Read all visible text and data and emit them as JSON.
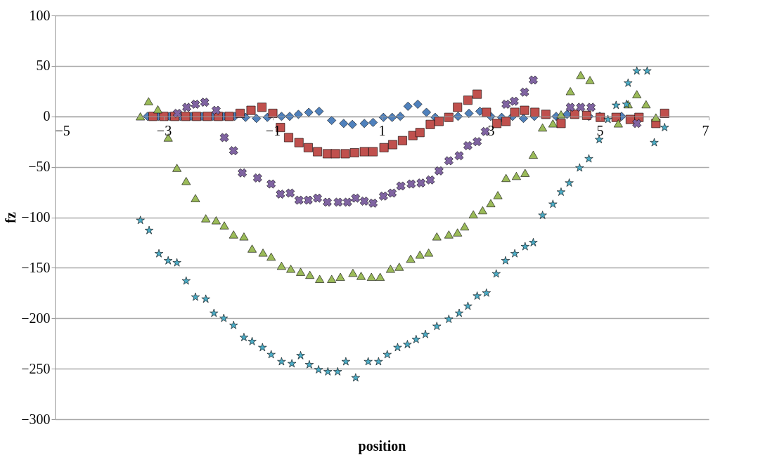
{
  "chart_data": {
    "type": "scatter",
    "xlabel": "position",
    "ylabel": "fz",
    "xlim": [
      -5,
      7
    ],
    "xticks": [
      -5,
      -3,
      -1,
      1,
      3,
      5,
      7
    ],
    "ylim": [
      -300,
      100
    ],
    "yticks": [
      -300,
      -250,
      -200,
      -150,
      -100,
      -50,
      0,
      50,
      100
    ],
    "grid": "y",
    "series": [
      {
        "color": "#4f81bd",
        "marker": "diamond",
        "x": [
          -3.3,
          -3.1,
          -2.9,
          -2.7,
          -2.5,
          -2.3,
          -2.1,
          -1.9,
          -1.7,
          -1.5,
          -1.3,
          -1.1,
          -0.84,
          -0.69,
          -0.53,
          -0.34,
          -0.15,
          0.08,
          0.3,
          0.46,
          0.68,
          0.84,
          1.03,
          1.19,
          1.34,
          1.48,
          1.66,
          1.82,
          1.98,
          2.4,
          2.6,
          2.8,
          3.0,
          3.2,
          3.4,
          3.6,
          3.8,
          4.0,
          4.2,
          4.4,
          4.6,
          4.8,
          5.0,
          5.2,
          5.4
        ],
        "values": [
          0,
          0,
          0,
          0,
          0,
          0,
          0,
          0,
          0,
          -1,
          -2,
          -1,
          0,
          0,
          2,
          4,
          5,
          -4,
          -7,
          -8,
          -7,
          -6,
          -1,
          -1,
          0,
          10,
          12,
          4,
          -1,
          0,
          3,
          5,
          0,
          -1,
          0,
          -2,
          0,
          null,
          0,
          2,
          null,
          0,
          0,
          null,
          0
        ]
      },
      {
        "color": "#c0504d",
        "marker": "square",
        "x": [
          -3.2,
          -3.0,
          -2.8,
          -2.6,
          -2.4,
          -2.2,
          -2.0,
          -1.8,
          -1.6,
          -1.4,
          -1.2,
          -1.0,
          -0.86,
          -0.71,
          -0.52,
          -0.35,
          -0.18,
          0,
          0.15,
          0.33,
          0.5,
          0.68,
          0.84,
          1.04,
          1.2,
          1.38,
          1.57,
          1.7,
          1.89,
          2.05,
          2.23,
          2.39,
          2.58,
          2.75,
          2.92,
          3.11,
          3.28,
          3.44,
          3.62,
          3.81,
          4.01,
          4.29,
          4.54,
          4.76,
          5.01,
          5.3,
          5.56,
          5.72,
          6.03,
          6.19
        ],
        "values": [
          0,
          0,
          0,
          0,
          0,
          0,
          0,
          0,
          3,
          6,
          9,
          3,
          -11,
          -21,
          -26,
          -31,
          -35,
          -37,
          -37,
          -37,
          -36,
          -35,
          -35,
          -31,
          -28,
          -24,
          -19,
          -16,
          -8,
          -5,
          -1,
          9,
          16,
          22,
          4,
          -7,
          -5,
          4,
          6,
          4,
          2,
          -7,
          2,
          1,
          -1,
          -1,
          -3,
          -1,
          -7,
          3
        ]
      },
      {
        "color": "#8064a2",
        "marker": "cross",
        "x": [
          -2.75,
          -2.58,
          -2.42,
          -2.25,
          -2.04,
          -1.89,
          -1.72,
          -1.56,
          -1.28,
          -1.03,
          -0.86,
          -0.68,
          -0.52,
          -0.35,
          -0.18,
          0,
          0.2,
          0.37,
          0.52,
          0.68,
          0.84,
          1.03,
          1.19,
          1.35,
          1.54,
          1.72,
          1.89,
          2.05,
          2.23,
          2.42,
          2.58,
          2.75,
          2.9,
          3.28,
          3.43,
          3.62,
          3.78,
          4.46,
          4.65,
          4.84,
          5.68
        ],
        "values": [
          3,
          9,
          12,
          14,
          6,
          -21,
          -34,
          -56,
          -61,
          -67,
          -77,
          -76,
          -83,
          -83,
          -81,
          -85,
          -85,
          -85,
          -81,
          -84,
          -86,
          -79,
          -76,
          -69,
          -67,
          -66,
          -63,
          -54,
          -44,
          -39,
          -29,
          -25,
          -15,
          12,
          15,
          24,
          36,
          9,
          9,
          9,
          -7
        ]
      },
      {
        "color": "#9bbb59",
        "marker": "triangle",
        "x": [
          -3.43,
          -3.28,
          -3.11,
          -2.92,
          -2.76,
          -2.59,
          -2.42,
          -2.23,
          -2.04,
          -1.89,
          -1.72,
          -1.53,
          -1.38,
          -1.18,
          -1.03,
          -0.84,
          -0.67,
          -0.49,
          -0.32,
          -0.14,
          0.08,
          0.24,
          0.47,
          0.62,
          0.81,
          0.97,
          1.16,
          1.32,
          1.53,
          1.7,
          1.86,
          2.01,
          2.23,
          2.39,
          2.52,
          2.68,
          2.85,
          3.0,
          3.13,
          3.28,
          3.47,
          3.63,
          3.78,
          3.95,
          4.14,
          4.29,
          4.46,
          4.65,
          4.82,
          5.15,
          5.34,
          5.52,
          5.68,
          5.85,
          6.03
        ],
        "values": [
          0,
          15,
          7,
          -21,
          -51,
          -64,
          -81,
          -101,
          -103,
          -108,
          -117,
          -119,
          -131,
          -135,
          -139,
          -148,
          -151,
          -154,
          -157,
          -161,
          -161,
          -159,
          -155,
          -158,
          -159,
          -159,
          -151,
          -149,
          -141,
          -137,
          -135,
          -119,
          -117,
          -115,
          -109,
          -97,
          -93,
          -86,
          -78,
          -61,
          -59,
          -56,
          -38,
          -11,
          -7,
          2,
          25,
          41,
          36,
          null,
          -7,
          12,
          22,
          12,
          -1
        ]
      },
      {
        "color": "#4bacc6",
        "marker": "star",
        "x": [
          -3.43,
          -3.27,
          -3.09,
          -2.92,
          -2.76,
          -2.59,
          -2.42,
          -2.23,
          -2.08,
          -1.9,
          -1.72,
          -1.53,
          -1.38,
          -1.19,
          -1.03,
          -0.84,
          -0.65,
          -0.49,
          -0.33,
          -0.16,
          0.01,
          0.19,
          0.34,
          0.52,
          0.75,
          0.94,
          1.1,
          1.29,
          1.47,
          1.63,
          1.8,
          2.01,
          2.23,
          2.42,
          2.58,
          2.75,
          2.92,
          3.1,
          3.27,
          3.44,
          3.63,
          3.78,
          3.95,
          4.14,
          4.29,
          4.44,
          4.63,
          4.8,
          4.99,
          5.15,
          5.3,
          5.49,
          5.52,
          5.68,
          5.87,
          6.0,
          6.19
        ],
        "values": [
          -103,
          -113,
          -136,
          -143,
          -145,
          -163,
          -179,
          -181,
          -195,
          -200,
          -207,
          -219,
          -223,
          -229,
          -236,
          -243,
          -245,
          -237,
          -246,
          -251,
          -253,
          -253,
          -243,
          -259,
          -243,
          -243,
          -236,
          -229,
          -226,
          -221,
          -216,
          -208,
          -201,
          -195,
          -188,
          -178,
          -175,
          -156,
          -143,
          -136,
          -129,
          -125,
          -98,
          -87,
          -75,
          -66,
          -51,
          -42,
          -23,
          -3,
          11,
          12,
          33,
          45,
          45,
          -26,
          -11
        ]
      }
    ]
  }
}
